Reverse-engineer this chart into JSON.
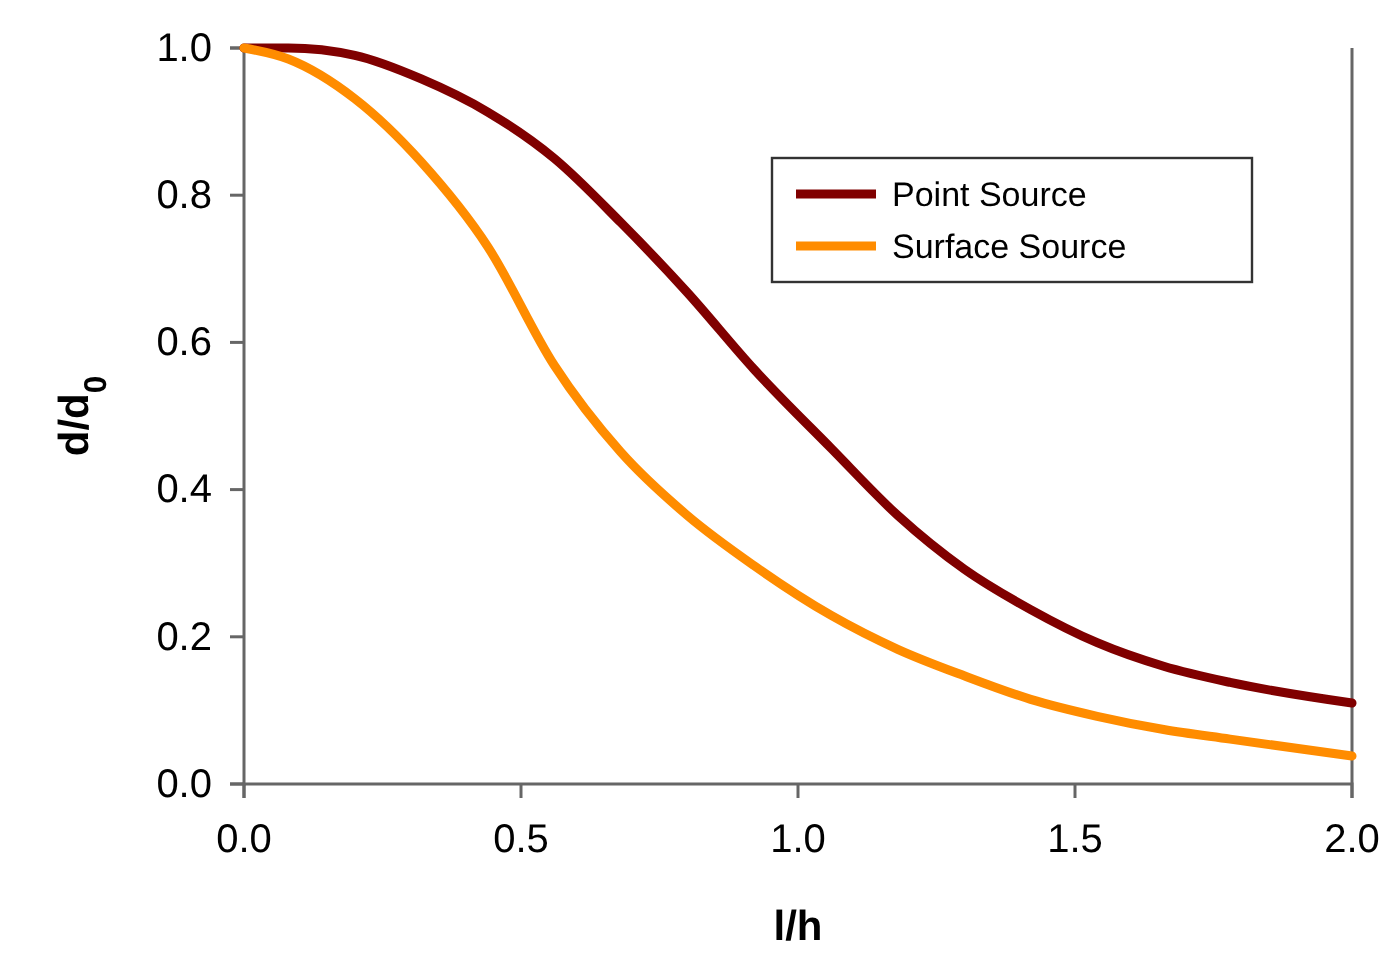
{
  "chart_data": {
    "type": "line",
    "xlabel": "l/h",
    "ylabel": "d/d$_{0}$",
    "xlim": [
      0,
      2
    ],
    "ylim": [
      0,
      1
    ],
    "xticks": [
      {
        "value": 0,
        "label": "0.0"
      },
      {
        "value": 0.5,
        "label": "0.5"
      },
      {
        "value": 1,
        "label": "1.0"
      },
      {
        "value": 1.5,
        "label": "1.5"
      },
      {
        "value": 2,
        "label": "2.0"
      }
    ],
    "yticks": [
      {
        "value": 0,
        "label": "0.0"
      },
      {
        "value": 0.2,
        "label": "0.2"
      },
      {
        "value": 0.4,
        "label": "0.4"
      },
      {
        "value": 0.6,
        "label": "0.6"
      },
      {
        "value": 0.8,
        "label": "0.8"
      },
      {
        "value": 1,
        "label": "1.0"
      }
    ],
    "grid": false,
    "legend": "top right",
    "marker": "none",
    "line_style": "solid",
    "series": [
      {
        "name": "Point Source",
        "color": "#800000",
        "x": [
          0,
          0.08,
          0.2,
          0.32,
          0.44,
          0.56,
          0.68,
          0.8,
          0.92,
          1.06,
          1.18,
          1.3,
          1.42,
          1.54,
          1.66,
          1.78,
          2
        ],
        "values": [
          1,
          1,
          0.99,
          0.958,
          0.913,
          0.85,
          0.763,
          0.668,
          0.564,
          0.456,
          0.365,
          0.292,
          0.237,
          0.192,
          0.16,
          0.138,
          0.11
        ]
      },
      {
        "name": "Surface Source",
        "color": "#ff8c00",
        "x": [
          0,
          0.08,
          0.2,
          0.32,
          0.44,
          0.56,
          0.68,
          0.8,
          0.92,
          1.06,
          1.18,
          1.3,
          1.42,
          1.54,
          1.66,
          1.78,
          2
        ],
        "values": [
          1,
          0.985,
          0.931,
          0.845,
          0.73,
          0.569,
          0.451,
          0.365,
          0.297,
          0.229,
          0.183,
          0.147,
          0.115,
          0.092,
          0.074,
          0.061,
          0.038
        ]
      }
    ]
  }
}
